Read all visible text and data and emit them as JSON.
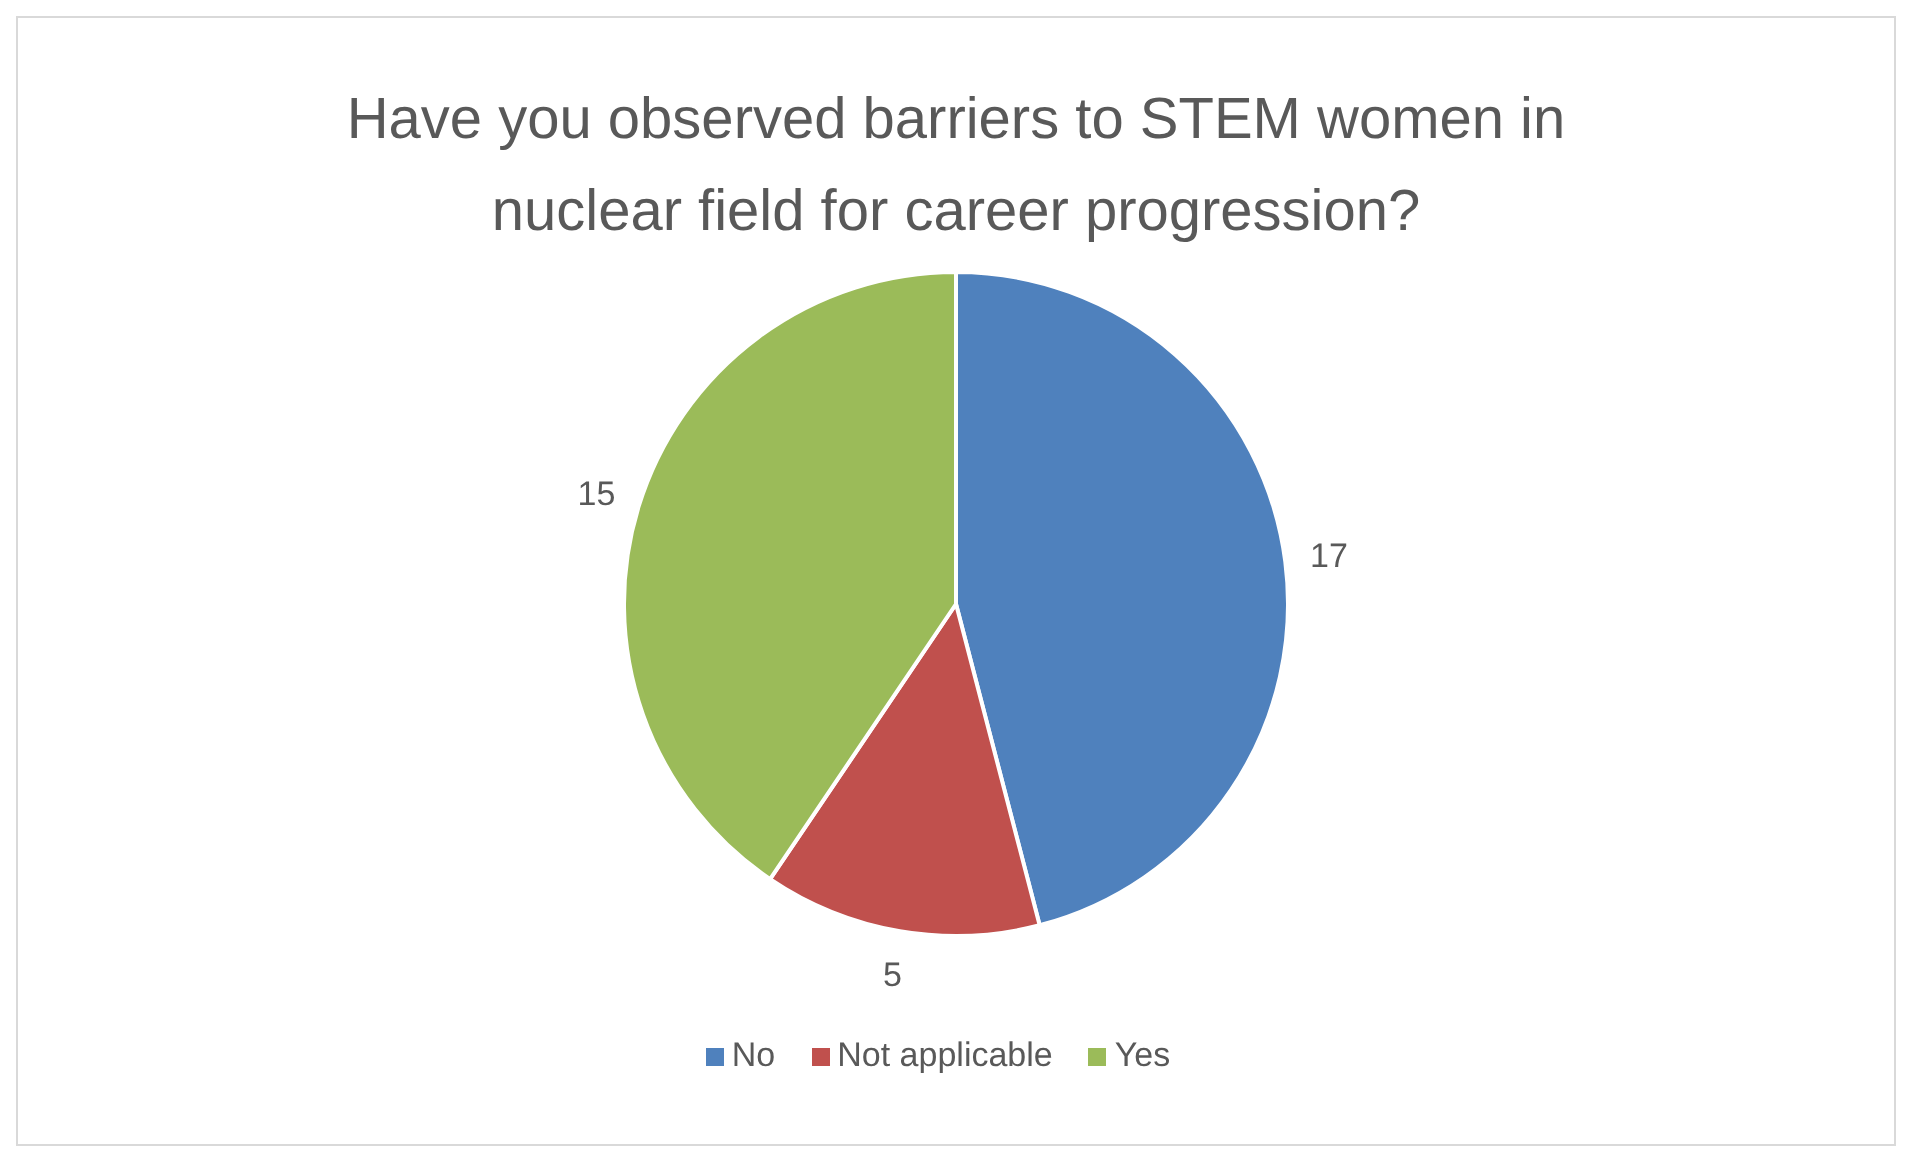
{
  "chart_data": {
    "type": "pie",
    "title": "Have you observed barriers to STEM women in nuclear field for career progression?",
    "categories": [
      "No",
      "Not applicable",
      "Yes"
    ],
    "values": [
      17,
      5,
      15
    ],
    "colors": [
      "#4f81bd",
      "#c0504d",
      "#9bbb59"
    ],
    "data_labels": true,
    "legend": "bottom"
  }
}
